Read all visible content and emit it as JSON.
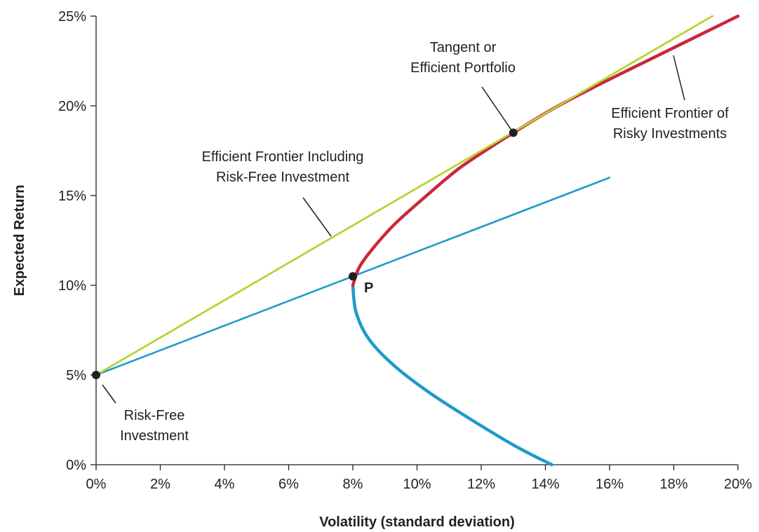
{
  "chart_data": {
    "type": "line",
    "title": "",
    "xlabel": "Volatility (standard deviation)",
    "ylabel": "Expected Return",
    "xlim": [
      0,
      20
    ],
    "ylim": [
      0,
      25
    ],
    "x_ticks": [
      "0%",
      "2%",
      "4%",
      "6%",
      "8%",
      "10%",
      "12%",
      "14%",
      "16%",
      "18%",
      "20%"
    ],
    "y_ticks": [
      "0%",
      "5%",
      "10%",
      "15%",
      "20%",
      "25%"
    ],
    "grid": false,
    "legend": "none",
    "colors": {
      "capital_market_line": "#b8d432",
      "line_through_p": "#1e9bc9",
      "frontier_efficient": "#c8283c",
      "frontier_inefficient": "#1e9bc9",
      "points": "#231f20",
      "text": "#231f20"
    },
    "series": [
      {
        "key": "cml",
        "points": [
          [
            0,
            5
          ],
          [
            19.2,
            25
          ]
        ]
      },
      {
        "key": "line_p",
        "points": [
          [
            0,
            5
          ],
          [
            16,
            16
          ]
        ]
      },
      {
        "key": "frontier_lower",
        "points": [
          [
            8,
            10
          ],
          [
            8.1,
            8.5
          ],
          [
            8.5,
            7
          ],
          [
            9.3,
            5.5
          ],
          [
            10.4,
            4
          ],
          [
            11.7,
            2.5
          ],
          [
            13.1,
            1
          ],
          [
            14.2,
            0
          ]
        ]
      },
      {
        "key": "frontier_upper",
        "points": [
          [
            8,
            10
          ],
          [
            8.2,
            11
          ],
          [
            8.6,
            12
          ],
          [
            9.3,
            13.4
          ],
          [
            10.3,
            15
          ],
          [
            11.3,
            16.5
          ],
          [
            12.3,
            17.7
          ],
          [
            13,
            18.5
          ],
          [
            14.3,
            19.9
          ],
          [
            15.8,
            21.3
          ],
          [
            17.5,
            22.8
          ],
          [
            20,
            25
          ]
        ]
      }
    ],
    "points": [
      {
        "key": "risk_free",
        "x": 0,
        "y": 5
      },
      {
        "key": "p",
        "x": 8,
        "y": 10.5,
        "label": "P"
      },
      {
        "key": "tangent",
        "x": 13,
        "y": 18.5
      }
    ],
    "annotations": [
      {
        "key": "tangent",
        "lines": [
          "Tangent or",
          "Efficient Portfolio"
        ]
      },
      {
        "key": "frontier_risky",
        "lines": [
          "Efficient Frontier of",
          "Risky Investments"
        ]
      },
      {
        "key": "frontier_rf",
        "lines": [
          "Efficient Frontier Including",
          "Risk-Free Investment"
        ]
      },
      {
        "key": "risk_free",
        "lines": [
          "Risk-Free",
          "Investment"
        ]
      }
    ]
  }
}
